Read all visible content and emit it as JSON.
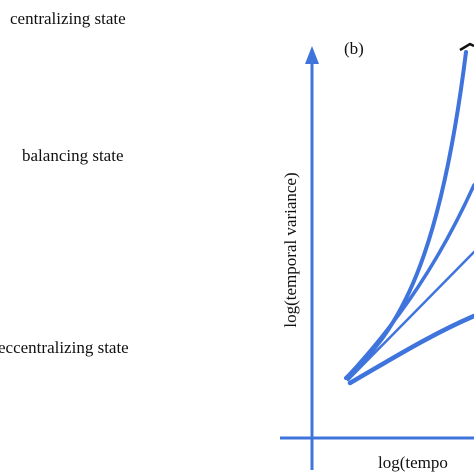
{
  "states": [
    "centralizing state",
    "balancing state",
    "eccentralizing state"
  ],
  "panel": {
    "label": "(b)",
    "y_axis_label": "log(temporal variance)",
    "x_axis_label": "log(tempo"
  }
}
